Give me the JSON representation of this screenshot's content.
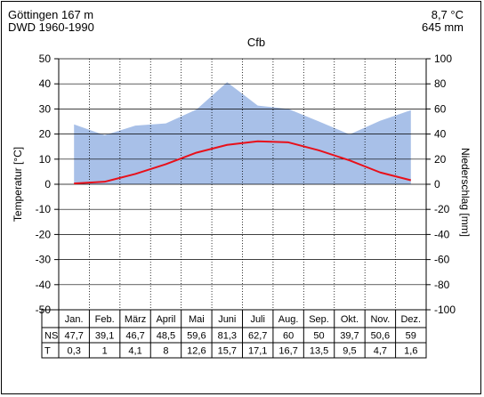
{
  "header": {
    "station": "Göttingen 167 m",
    "period": "DWD 1960-1990",
    "mean_temperature": "8,7 °C",
    "annual_precipitation": "645 mm",
    "climate_class": "Cfb"
  },
  "chart_data": {
    "type": "area",
    "ylabel_left": "Temperatur [°C]",
    "ylabel_right": "Niederschlag [mm]",
    "ylim_left": [
      -50,
      50
    ],
    "ylim_right": [
      -100,
      100
    ],
    "left_ticks": [
      "50",
      "40",
      "30",
      "20",
      "10",
      "0",
      "-10",
      "-20",
      "-30",
      "-40",
      "-50"
    ],
    "right_ticks": [
      "100",
      "80",
      "60",
      "40",
      "20",
      "0",
      "-20",
      "-40",
      "-60",
      "-80",
      "-100"
    ],
    "grid": true,
    "categories": [
      "Jan.",
      "Feb.",
      "März",
      "April",
      "Mai",
      "Juni",
      "Juli",
      "Aug.",
      "Sep.",
      "Okt.",
      "Nov.",
      "Dez."
    ],
    "precipitation_color": "#a8c0e8",
    "temperature_color": "#e8101a",
    "series": [
      {
        "axis": "right",
        "kind": "area",
        "values": [
          47.7,
          39.1,
          46.7,
          48.5,
          59.6,
          81.3,
          62.7,
          60,
          50,
          39.7,
          50.6,
          59
        ]
      },
      {
        "axis": "left",
        "kind": "line",
        "values": [
          0.3,
          1,
          4.1,
          8,
          12.6,
          15.7,
          17.1,
          16.7,
          13.5,
          9.5,
          4.7,
          1.6
        ]
      }
    ],
    "table": {
      "row_labels": [
        "NS",
        "T"
      ],
      "rows": [
        [
          "47,7",
          "39,1",
          "46,7",
          "48,5",
          "59,6",
          "81,3",
          "62,7",
          "60",
          "50",
          "39,7",
          "50,6",
          "59"
        ],
        [
          "0,3",
          "1",
          "4,1",
          "8",
          "12,6",
          "15,7",
          "17,1",
          "16,7",
          "13,5",
          "9,5",
          "4,7",
          "1,6"
        ]
      ]
    }
  }
}
